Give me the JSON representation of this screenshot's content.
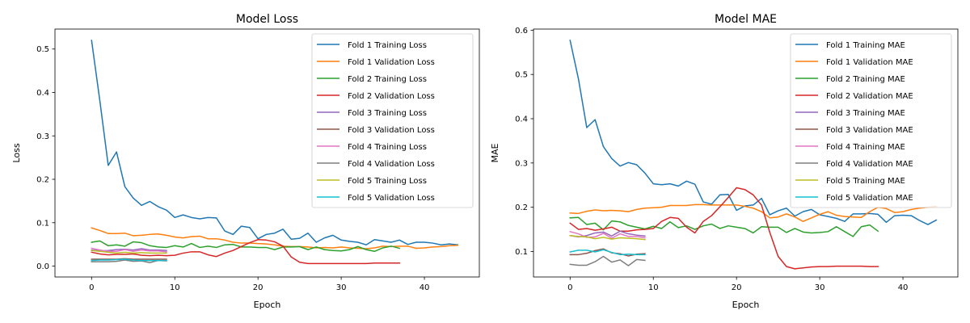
{
  "chart_data": [
    {
      "type": "line",
      "title": "Model Loss",
      "xlabel": "Epoch",
      "ylabel": "Loss",
      "xlim": [
        -4.4,
        46.6
      ],
      "ylim": [
        -0.025,
        0.546
      ],
      "xticks": [
        0,
        10,
        20,
        30,
        40
      ],
      "yticks": [
        0.0,
        0.1,
        0.2,
        0.3,
        0.4,
        0.5
      ],
      "ytick_labels": [
        "0.0",
        "0.1",
        "0.2",
        "0.3",
        "0.4",
        "0.5"
      ],
      "legend_position": "top-right",
      "grid": false,
      "series": [
        {
          "name": "Fold 1 Training Loss",
          "color": "#1f77b4",
          "values": [
            0.52,
            0.38,
            0.232,
            0.263,
            0.183,
            0.157,
            0.14,
            0.149,
            0.137,
            0.129,
            0.112,
            0.118,
            0.112,
            0.109,
            0.112,
            0.111,
            0.081,
            0.073,
            0.092,
            0.089,
            0.063,
            0.073,
            0.076,
            0.085,
            0.062,
            0.064,
            0.076,
            0.055,
            0.065,
            0.071,
            0.06,
            0.057,
            0.055,
            0.049,
            0.061,
            0.058,
            0.055,
            0.06,
            0.05,
            0.055,
            0.055,
            0.053,
            0.049,
            0.051,
            0.049
          ]
        },
        {
          "name": "Fold 1 Validation Loss",
          "color": "#ff7f0e",
          "values": [
            0.088,
            0.082,
            0.075,
            0.075,
            0.076,
            0.07,
            0.071,
            0.073,
            0.074,
            0.071,
            0.067,
            0.065,
            0.068,
            0.069,
            0.063,
            0.063,
            0.06,
            0.055,
            0.053,
            0.053,
            0.052,
            0.051,
            0.049,
            0.046,
            0.045,
            0.045,
            0.044,
            0.042,
            0.043,
            0.042,
            0.044,
            0.042,
            0.041,
            0.04,
            0.042,
            0.046,
            0.045,
            0.046,
            0.046,
            0.041,
            0.042,
            0.044,
            0.045,
            0.047,
            0.048
          ]
        },
        {
          "name": "Fold 2 Training Loss",
          "color": "#2ca02c",
          "values": [
            0.055,
            0.058,
            0.047,
            0.049,
            0.046,
            0.056,
            0.054,
            0.047,
            0.044,
            0.043,
            0.047,
            0.044,
            0.052,
            0.043,
            0.046,
            0.043,
            0.049,
            0.05,
            0.044,
            0.044,
            0.043,
            0.043,
            0.038,
            0.044,
            0.044,
            0.045,
            0.038,
            0.044,
            0.038,
            0.036,
            0.035,
            0.038,
            0.045,
            0.038,
            0.034,
            0.042,
            0.046,
            0.041
          ]
        },
        {
          "name": "Fold 2 Validation Loss",
          "color": "#d62728",
          "values": [
            0.032,
            0.028,
            0.026,
            0.027,
            0.027,
            0.028,
            0.025,
            0.024,
            0.025,
            0.024,
            0.025,
            0.03,
            0.033,
            0.033,
            0.026,
            0.022,
            0.03,
            0.036,
            0.045,
            0.054,
            0.061,
            0.06,
            0.056,
            0.046,
            0.021,
            0.009,
            0.006,
            0.006,
            0.006,
            0.006,
            0.006,
            0.006,
            0.006,
            0.006,
            0.007,
            0.007,
            0.007,
            0.007
          ]
        },
        {
          "name": "Fold 3 Training Loss",
          "color": "#9467bd",
          "values": [
            0.037,
            0.035,
            0.036,
            0.038,
            0.039,
            0.037,
            0.04,
            0.037,
            0.037,
            0.036
          ]
        },
        {
          "name": "Fold 3 Validation Loss",
          "color": "#8c564b",
          "values": [
            0.016,
            0.016,
            0.016,
            0.016,
            0.017,
            0.016,
            0.016,
            0.016,
            0.016,
            0.016
          ]
        },
        {
          "name": "Fold 4 Training Loss",
          "color": "#e377c2",
          "values": [
            0.041,
            0.037,
            0.034,
            0.034,
            0.038,
            0.034,
            0.037,
            0.035,
            0.035,
            0.033
          ]
        },
        {
          "name": "Fold 4 Validation Loss",
          "color": "#7f7f7f",
          "values": [
            0.01,
            0.01,
            0.01,
            0.011,
            0.014,
            0.011,
            0.012,
            0.008,
            0.013,
            0.012
          ]
        },
        {
          "name": "Fold 5 Training Loss",
          "color": "#bcbd22",
          "values": [
            0.036,
            0.034,
            0.032,
            0.03,
            0.032,
            0.03,
            0.031,
            0.03,
            0.03,
            0.03
          ]
        },
        {
          "name": "Fold 5 Validation Loss",
          "color": "#17becf",
          "values": [
            0.013,
            0.014,
            0.014,
            0.015,
            0.016,
            0.014,
            0.013,
            0.013,
            0.013,
            0.013
          ]
        }
      ]
    },
    {
      "type": "line",
      "title": "Model MAE",
      "xlabel": "Epoch",
      "ylabel": "MAE",
      "xlim": [
        -4.4,
        46.6
      ],
      "ylim": [
        0.0425,
        0.6025
      ],
      "xticks": [
        0,
        10,
        20,
        30,
        40
      ],
      "yticks": [
        0.1,
        0.2,
        0.3,
        0.4,
        0.5,
        0.6
      ],
      "ytick_labels": [
        "0.1",
        "0.2",
        "0.3",
        "0.4",
        "0.5",
        "0.6"
      ],
      "legend_position": "top-right",
      "grid": false,
      "series": [
        {
          "name": "Fold 1 Training MAE",
          "color": "#1f77b4",
          "values": [
            0.577,
            0.49,
            0.38,
            0.398,
            0.337,
            0.31,
            0.293,
            0.301,
            0.296,
            0.277,
            0.253,
            0.251,
            0.253,
            0.248,
            0.259,
            0.252,
            0.212,
            0.207,
            0.228,
            0.229,
            0.193,
            0.203,
            0.205,
            0.22,
            0.183,
            0.192,
            0.198,
            0.18,
            0.19,
            0.195,
            0.183,
            0.179,
            0.175,
            0.168,
            0.185,
            0.185,
            0.186,
            0.184,
            0.166,
            0.181,
            0.182,
            0.181,
            0.17,
            0.161,
            0.171
          ]
        },
        {
          "name": "Fold 1 Validation MAE",
          "color": "#ff7f0e",
          "values": [
            0.187,
            0.186,
            0.191,
            0.194,
            0.192,
            0.193,
            0.192,
            0.19,
            0.195,
            0.198,
            0.199,
            0.2,
            0.204,
            0.204,
            0.204,
            0.206,
            0.206,
            0.205,
            0.205,
            0.205,
            0.205,
            0.202,
            0.198,
            0.19,
            0.176,
            0.178,
            0.185,
            0.178,
            0.168,
            0.176,
            0.184,
            0.19,
            0.182,
            0.179,
            0.178,
            0.177,
            0.19,
            0.2,
            0.197,
            0.188,
            0.19,
            0.195,
            0.198,
            0.2,
            0.202
          ]
        },
        {
          "name": "Fold 2 Training MAE",
          "color": "#2ca02c",
          "values": [
            0.176,
            0.177,
            0.161,
            0.164,
            0.149,
            0.169,
            0.167,
            0.159,
            0.155,
            0.151,
            0.157,
            0.152,
            0.167,
            0.154,
            0.158,
            0.15,
            0.158,
            0.162,
            0.152,
            0.158,
            0.155,
            0.152,
            0.142,
            0.156,
            0.155,
            0.155,
            0.143,
            0.152,
            0.144,
            0.142,
            0.143,
            0.145,
            0.156,
            0.145,
            0.134,
            0.156,
            0.16,
            0.146
          ]
        },
        {
          "name": "Fold 2 Validation MAE",
          "color": "#d62728",
          "values": [
            0.164,
            0.15,
            0.152,
            0.148,
            0.151,
            0.155,
            0.146,
            0.146,
            0.149,
            0.15,
            0.152,
            0.168,
            0.177,
            0.175,
            0.155,
            0.142,
            0.168,
            0.181,
            0.201,
            0.222,
            0.244,
            0.24,
            0.228,
            0.205,
            0.143,
            0.089,
            0.066,
            0.061,
            0.063,
            0.065,
            0.066,
            0.066,
            0.067,
            0.067,
            0.067,
            0.067,
            0.066,
            0.066
          ]
        },
        {
          "name": "Fold 3 Training MAE",
          "color": "#9467bd",
          "values": [
            0.136,
            0.133,
            0.136,
            0.142,
            0.144,
            0.135,
            0.146,
            0.14,
            0.137,
            0.135
          ]
        },
        {
          "name": "Fold 3 Validation MAE",
          "color": "#8c564b",
          "values": [
            0.093,
            0.093,
            0.096,
            0.102,
            0.106,
            0.097,
            0.095,
            0.09,
            0.094,
            0.095
          ]
        },
        {
          "name": "Fold 4 Training MAE",
          "color": "#e377c2",
          "values": [
            0.145,
            0.14,
            0.132,
            0.133,
            0.141,
            0.13,
            0.14,
            0.134,
            0.134,
            0.131
          ]
        },
        {
          "name": "Fold 4 Validation MAE",
          "color": "#7f7f7f",
          "values": [
            0.071,
            0.069,
            0.069,
            0.077,
            0.089,
            0.076,
            0.081,
            0.068,
            0.082,
            0.08
          ]
        },
        {
          "name": "Fold 5 Training MAE",
          "color": "#bcbd22",
          "values": [
            0.136,
            0.134,
            0.133,
            0.129,
            0.132,
            0.128,
            0.131,
            0.13,
            0.129,
            0.127
          ]
        },
        {
          "name": "Fold 5 Validation MAE",
          "color": "#17becf",
          "values": [
            0.099,
            0.103,
            0.103,
            0.099,
            0.104,
            0.098,
            0.093,
            0.094,
            0.093,
            0.093
          ]
        }
      ]
    }
  ]
}
